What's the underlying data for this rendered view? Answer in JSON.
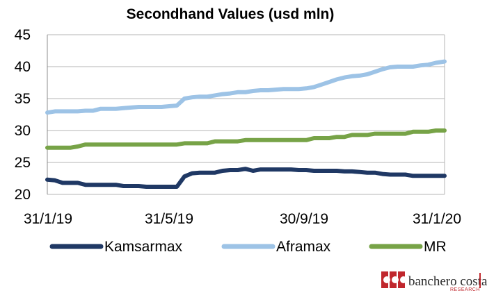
{
  "chart_data": {
    "type": "line",
    "title": "Secondhand Values (usd mln)",
    "xlabel": "",
    "ylabel": "",
    "x_ticks": [
      "31/1/19",
      "31/5/19",
      "30/9/19",
      "31/1/20"
    ],
    "x_range": [
      "2019-01-31",
      "2020-01-31"
    ],
    "ylim": [
      20,
      45
    ],
    "y_ticks": [
      "20",
      "25",
      "30",
      "35",
      "40",
      "45"
    ],
    "grid": "horizontal",
    "legend": "bottom",
    "series": [
      {
        "name": "Kamsarmax",
        "color": "#1f3864",
        "points": [
          [
            "2019-01-31",
            22.3
          ],
          [
            "2019-02-07",
            22.2
          ],
          [
            "2019-02-14",
            21.8
          ],
          [
            "2019-02-21",
            21.8
          ],
          [
            "2019-02-28",
            21.8
          ],
          [
            "2019-03-07",
            21.5
          ],
          [
            "2019-03-14",
            21.5
          ],
          [
            "2019-03-21",
            21.5
          ],
          [
            "2019-03-28",
            21.5
          ],
          [
            "2019-04-04",
            21.5
          ],
          [
            "2019-04-11",
            21.3
          ],
          [
            "2019-04-18",
            21.3
          ],
          [
            "2019-04-25",
            21.3
          ],
          [
            "2019-05-02",
            21.2
          ],
          [
            "2019-05-09",
            21.2
          ],
          [
            "2019-05-16",
            21.2
          ],
          [
            "2019-05-23",
            21.2
          ],
          [
            "2019-05-30",
            21.2
          ],
          [
            "2019-06-06",
            22.8
          ],
          [
            "2019-06-13",
            23.3
          ],
          [
            "2019-06-20",
            23.4
          ],
          [
            "2019-06-27",
            23.4
          ],
          [
            "2019-07-04",
            23.4
          ],
          [
            "2019-07-11",
            23.7
          ],
          [
            "2019-07-18",
            23.8
          ],
          [
            "2019-07-25",
            23.8
          ],
          [
            "2019-08-01",
            24.0
          ],
          [
            "2019-08-08",
            23.7
          ],
          [
            "2019-08-15",
            23.9
          ],
          [
            "2019-08-22",
            23.9
          ],
          [
            "2019-08-29",
            23.9
          ],
          [
            "2019-09-05",
            23.9
          ],
          [
            "2019-09-12",
            23.9
          ],
          [
            "2019-09-19",
            23.8
          ],
          [
            "2019-09-26",
            23.8
          ],
          [
            "2019-10-03",
            23.7
          ],
          [
            "2019-10-10",
            23.7
          ],
          [
            "2019-10-17",
            23.7
          ],
          [
            "2019-10-24",
            23.7
          ],
          [
            "2019-10-31",
            23.6
          ],
          [
            "2019-11-07",
            23.6
          ],
          [
            "2019-11-14",
            23.5
          ],
          [
            "2019-11-21",
            23.4
          ],
          [
            "2019-11-28",
            23.4
          ],
          [
            "2019-12-05",
            23.2
          ],
          [
            "2019-12-12",
            23.1
          ],
          [
            "2019-12-19",
            23.1
          ],
          [
            "2019-12-26",
            23.1
          ],
          [
            "2020-01-02",
            22.9
          ],
          [
            "2020-01-09",
            22.9
          ],
          [
            "2020-01-16",
            22.9
          ],
          [
            "2020-01-23",
            22.9
          ],
          [
            "2020-01-31",
            22.9
          ]
        ]
      },
      {
        "name": "Aframax",
        "color": "#9dc3e6",
        "points": [
          [
            "2019-01-31",
            32.8
          ],
          [
            "2019-02-07",
            33.0
          ],
          [
            "2019-02-14",
            33.0
          ],
          [
            "2019-02-21",
            33.0
          ],
          [
            "2019-02-28",
            33.0
          ],
          [
            "2019-03-07",
            33.1
          ],
          [
            "2019-03-14",
            33.1
          ],
          [
            "2019-03-21",
            33.4
          ],
          [
            "2019-03-28",
            33.4
          ],
          [
            "2019-04-04",
            33.4
          ],
          [
            "2019-04-11",
            33.5
          ],
          [
            "2019-04-18",
            33.6
          ],
          [
            "2019-04-25",
            33.7
          ],
          [
            "2019-05-02",
            33.7
          ],
          [
            "2019-05-09",
            33.7
          ],
          [
            "2019-05-16",
            33.7
          ],
          [
            "2019-05-23",
            33.8
          ],
          [
            "2019-05-30",
            33.9
          ],
          [
            "2019-06-06",
            35.0
          ],
          [
            "2019-06-13",
            35.2
          ],
          [
            "2019-06-20",
            35.3
          ],
          [
            "2019-06-27",
            35.3
          ],
          [
            "2019-07-04",
            35.5
          ],
          [
            "2019-07-11",
            35.7
          ],
          [
            "2019-07-18",
            35.8
          ],
          [
            "2019-07-25",
            36.0
          ],
          [
            "2019-08-01",
            36.0
          ],
          [
            "2019-08-08",
            36.2
          ],
          [
            "2019-08-15",
            36.3
          ],
          [
            "2019-08-22",
            36.3
          ],
          [
            "2019-08-29",
            36.4
          ],
          [
            "2019-09-05",
            36.5
          ],
          [
            "2019-09-12",
            36.5
          ],
          [
            "2019-09-19",
            36.5
          ],
          [
            "2019-09-26",
            36.6
          ],
          [
            "2019-10-03",
            36.8
          ],
          [
            "2019-10-10",
            37.2
          ],
          [
            "2019-10-17",
            37.6
          ],
          [
            "2019-10-24",
            38.0
          ],
          [
            "2019-10-31",
            38.3
          ],
          [
            "2019-11-07",
            38.5
          ],
          [
            "2019-11-14",
            38.6
          ],
          [
            "2019-11-21",
            38.8
          ],
          [
            "2019-11-28",
            39.2
          ],
          [
            "2019-12-05",
            39.6
          ],
          [
            "2019-12-12",
            39.9
          ],
          [
            "2019-12-19",
            40.0
          ],
          [
            "2019-12-26",
            40.0
          ],
          [
            "2020-01-02",
            40.0
          ],
          [
            "2020-01-09",
            40.2
          ],
          [
            "2020-01-16",
            40.3
          ],
          [
            "2020-01-23",
            40.6
          ],
          [
            "2020-01-31",
            40.8
          ]
        ]
      },
      {
        "name": "MR",
        "color": "#77a347",
        "points": [
          [
            "2019-01-31",
            27.3
          ],
          [
            "2019-02-07",
            27.3
          ],
          [
            "2019-02-14",
            27.3
          ],
          [
            "2019-02-21",
            27.3
          ],
          [
            "2019-02-28",
            27.5
          ],
          [
            "2019-03-07",
            27.8
          ],
          [
            "2019-03-14",
            27.8
          ],
          [
            "2019-03-21",
            27.8
          ],
          [
            "2019-03-28",
            27.8
          ],
          [
            "2019-04-04",
            27.8
          ],
          [
            "2019-04-11",
            27.8
          ],
          [
            "2019-04-18",
            27.8
          ],
          [
            "2019-04-25",
            27.8
          ],
          [
            "2019-05-02",
            27.8
          ],
          [
            "2019-05-09",
            27.8
          ],
          [
            "2019-05-16",
            27.8
          ],
          [
            "2019-05-23",
            27.8
          ],
          [
            "2019-05-30",
            27.8
          ],
          [
            "2019-06-06",
            28.0
          ],
          [
            "2019-06-13",
            28.0
          ],
          [
            "2019-06-20",
            28.0
          ],
          [
            "2019-06-27",
            28.0
          ],
          [
            "2019-07-04",
            28.3
          ],
          [
            "2019-07-11",
            28.3
          ],
          [
            "2019-07-18",
            28.3
          ],
          [
            "2019-07-25",
            28.3
          ],
          [
            "2019-08-01",
            28.5
          ],
          [
            "2019-08-08",
            28.5
          ],
          [
            "2019-08-15",
            28.5
          ],
          [
            "2019-08-22",
            28.5
          ],
          [
            "2019-08-29",
            28.5
          ],
          [
            "2019-09-05",
            28.5
          ],
          [
            "2019-09-12",
            28.5
          ],
          [
            "2019-09-19",
            28.5
          ],
          [
            "2019-09-26",
            28.5
          ],
          [
            "2019-10-03",
            28.8
          ],
          [
            "2019-10-10",
            28.8
          ],
          [
            "2019-10-17",
            28.8
          ],
          [
            "2019-10-24",
            29.0
          ],
          [
            "2019-10-31",
            29.0
          ],
          [
            "2019-11-07",
            29.3
          ],
          [
            "2019-11-14",
            29.3
          ],
          [
            "2019-11-21",
            29.3
          ],
          [
            "2019-11-28",
            29.5
          ],
          [
            "2019-12-05",
            29.5
          ],
          [
            "2019-12-12",
            29.5
          ],
          [
            "2019-12-19",
            29.5
          ],
          [
            "2019-12-26",
            29.5
          ],
          [
            "2020-01-02",
            29.8
          ],
          [
            "2020-01-09",
            29.8
          ],
          [
            "2020-01-16",
            29.8
          ],
          [
            "2020-01-23",
            30.0
          ],
          [
            "2020-01-31",
            30.0
          ]
        ]
      }
    ]
  },
  "branding": {
    "name": "banchero costa",
    "subtitle": "RESEARCH",
    "accent_color": "#c0272d"
  }
}
